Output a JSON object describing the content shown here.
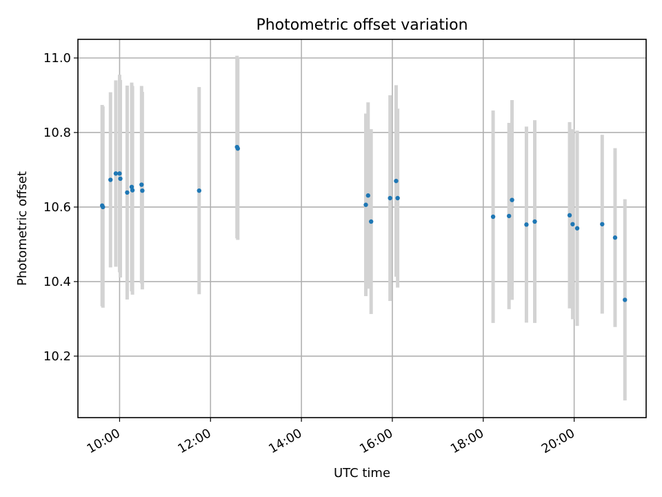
{
  "chart_data": {
    "type": "scatter",
    "title": "Photometric offset variation",
    "xlabel": "UTC time",
    "ylabel": "Photometric offset",
    "x_axis_kind": "time",
    "x_tick_labels": [
      "10:00",
      "12:00",
      "14:00",
      "16:00",
      "18:00",
      "20:00"
    ],
    "y_tick_labels": [
      "10.2",
      "10.4",
      "10.6",
      "10.8",
      "11.0"
    ],
    "y_ticks": [
      10.2,
      10.4,
      10.6,
      10.8,
      11.0
    ],
    "x_range": [
      "09:05",
      "21:35"
    ],
    "ylim": [
      10.035,
      11.05
    ],
    "grid": true,
    "marker_color": "#1f77b4",
    "errorbar_color": "#d3d3d3",
    "points": [
      {
        "x": "09:37",
        "y": 10.604,
        "err": 0.27
      },
      {
        "x": "09:38",
        "y": 10.6,
        "err": 0.27
      },
      {
        "x": "09:48",
        "y": 10.673,
        "err": 0.235
      },
      {
        "x": "09:55",
        "y": 10.69,
        "err": 0.25
      },
      {
        "x": "10:00",
        "y": 10.69,
        "err": 0.265
      },
      {
        "x": "10:01",
        "y": 10.676,
        "err": 0.265
      },
      {
        "x": "10:10",
        "y": 10.639,
        "err": 0.287
      },
      {
        "x": "10:16",
        "y": 10.654,
        "err": 0.28
      },
      {
        "x": "10:17",
        "y": 10.645,
        "err": 0.28
      },
      {
        "x": "10:29",
        "y": 10.66,
        "err": 0.265
      },
      {
        "x": "10:30",
        "y": 10.644,
        "err": 0.265
      },
      {
        "x": "11:45",
        "y": 10.644,
        "err": 0.278
      },
      {
        "x": "12:35",
        "y": 10.761,
        "err": 0.245
      },
      {
        "x": "12:36",
        "y": 10.757,
        "err": 0.245
      },
      {
        "x": "15:25",
        "y": 10.606,
        "err": 0.245
      },
      {
        "x": "15:28",
        "y": 10.631,
        "err": 0.25
      },
      {
        "x": "15:32",
        "y": 10.561,
        "err": 0.248
      },
      {
        "x": "15:57",
        "y": 10.624,
        "err": 0.276
      },
      {
        "x": "16:05",
        "y": 10.67,
        "err": 0.257
      },
      {
        "x": "16:07",
        "y": 10.624,
        "err": 0.24
      },
      {
        "x": "18:13",
        "y": 10.574,
        "err": 0.285
      },
      {
        "x": "18:34",
        "y": 10.576,
        "err": 0.25
      },
      {
        "x": "18:38",
        "y": 10.619,
        "err": 0.268
      },
      {
        "x": "18:57",
        "y": 10.553,
        "err": 0.263
      },
      {
        "x": "19:08",
        "y": 10.561,
        "err": 0.272
      },
      {
        "x": "19:54",
        "y": 10.578,
        "err": 0.25
      },
      {
        "x": "19:58",
        "y": 10.554,
        "err": 0.255
      },
      {
        "x": "20:04",
        "y": 10.543,
        "err": 0.262
      },
      {
        "x": "20:37",
        "y": 10.554,
        "err": 0.24
      },
      {
        "x": "20:54",
        "y": 10.518,
        "err": 0.24
      },
      {
        "x": "21:07",
        "y": 10.351,
        "err": 0.27
      }
    ]
  }
}
